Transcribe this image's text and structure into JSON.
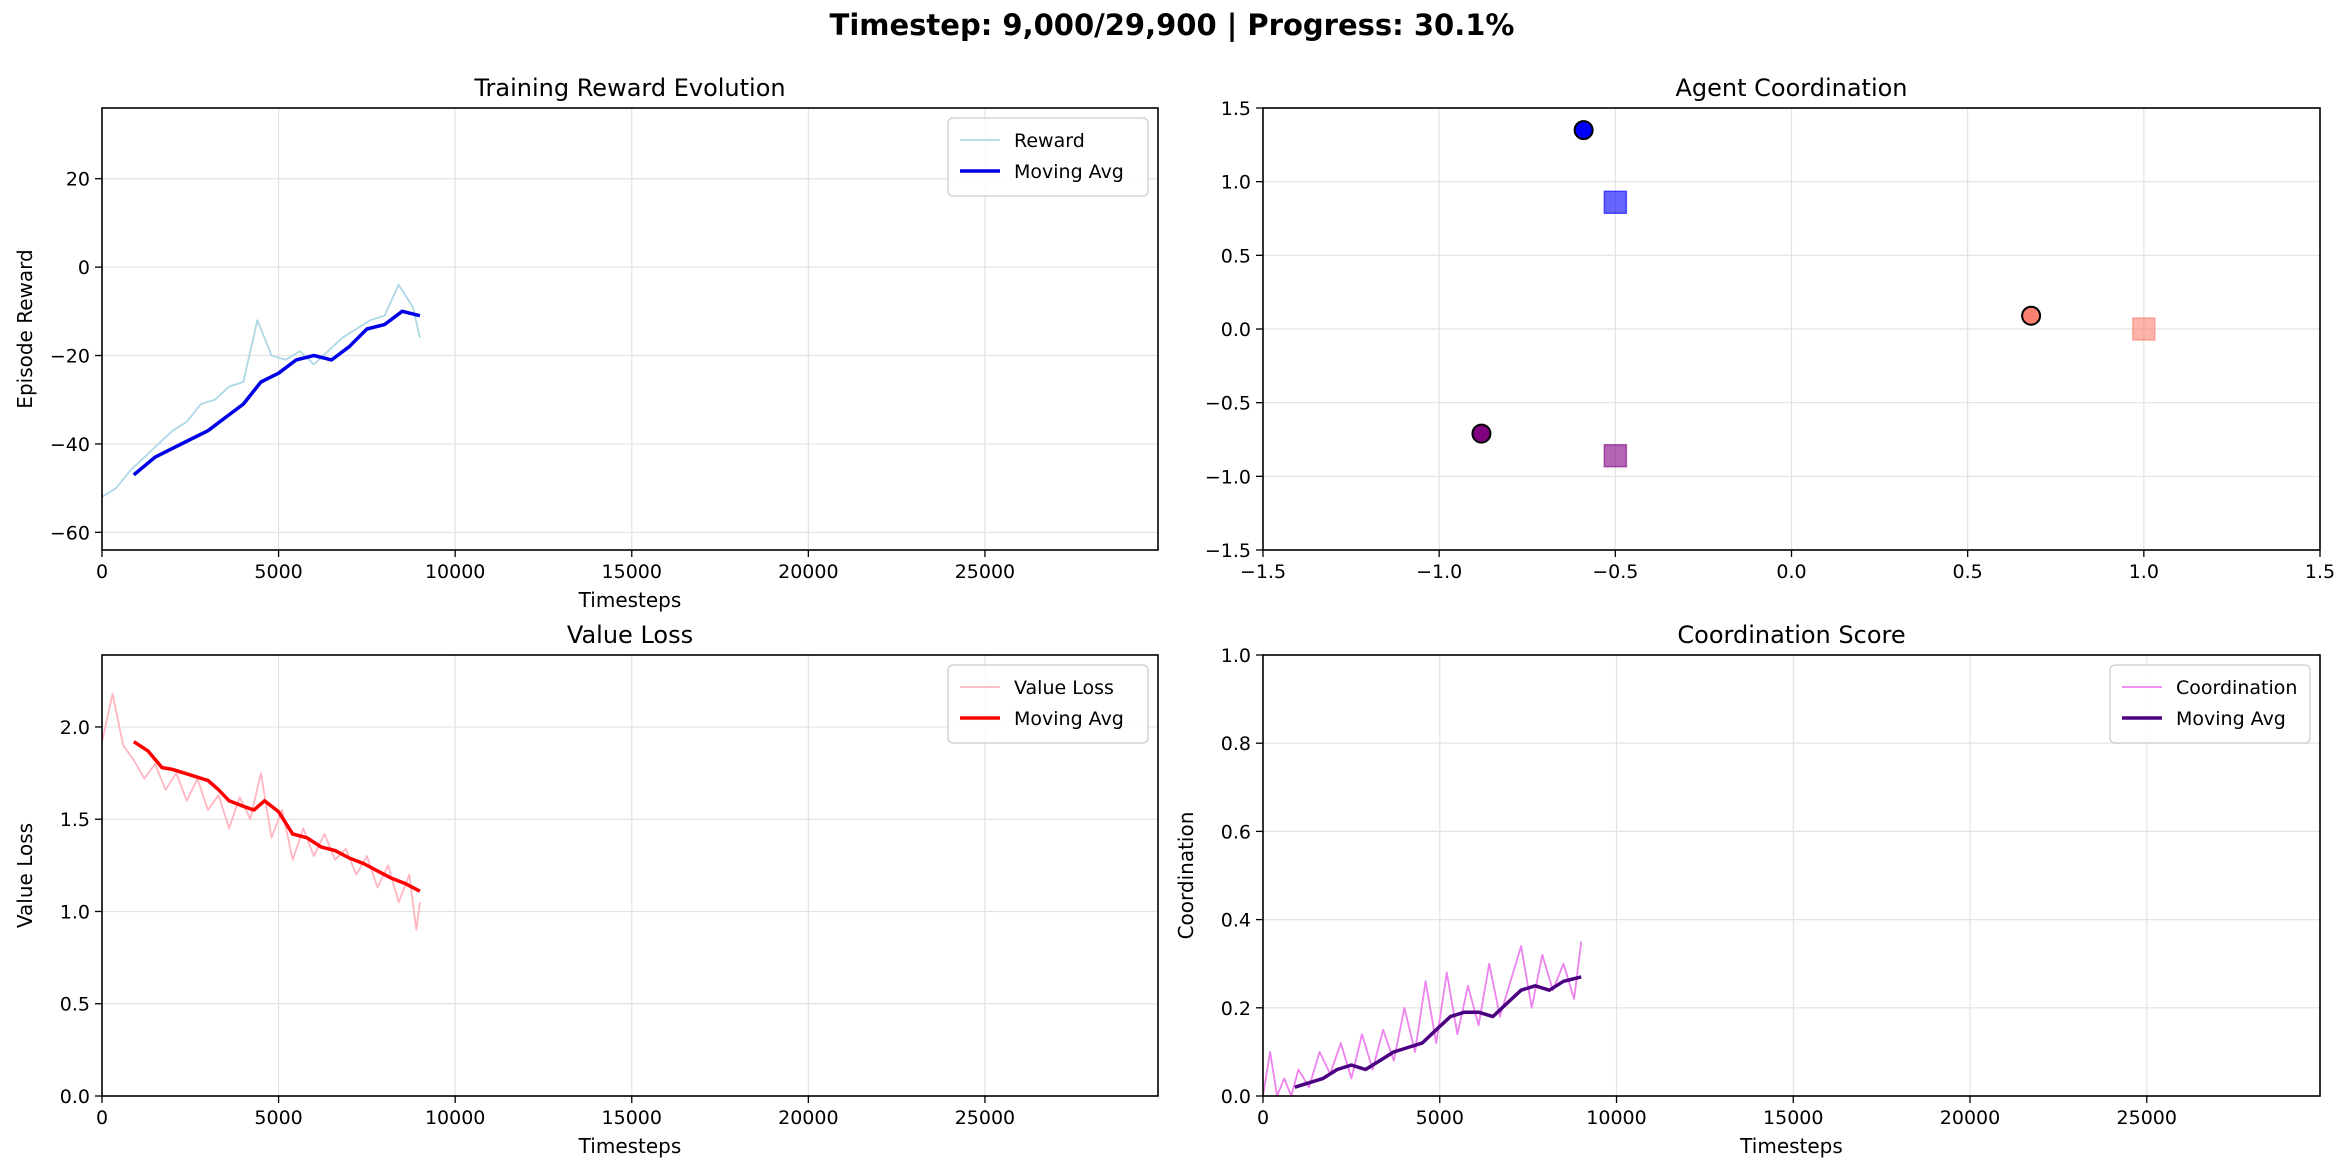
{
  "suptitle": "Timestep: 9,000/29,900 | Progress: 30.1%",
  "chart_data": [
    {
      "type": "line",
      "title": "Training Reward Evolution",
      "xlabel": "Timesteps",
      "ylabel": "Episode Reward",
      "xlim": [
        0,
        29900
      ],
      "ylim": [
        -64,
        36
      ],
      "xticks": [
        0,
        5000,
        10000,
        15000,
        20000,
        25000
      ],
      "yticks": [
        -60,
        -40,
        -20,
        0,
        20
      ],
      "grid": true,
      "legend": "top-right",
      "series": [
        {
          "name": "Reward",
          "color": "#add8e6",
          "width": 1.8,
          "x": [
            0,
            400,
            800,
            1200,
            1600,
            2000,
            2400,
            2800,
            3200,
            3600,
            4000,
            4400,
            4800,
            5200,
            5600,
            6000,
            6400,
            6800,
            7200,
            7600,
            8000,
            8400,
            8800,
            9000
          ],
          "y": [
            -52,
            -50,
            -46,
            -43,
            -40,
            -37,
            -35,
            -31,
            -30,
            -27,
            -26,
            -12,
            -20,
            -21,
            -19,
            -22,
            -19,
            -16,
            -14,
            -12,
            -11,
            -4,
            -9,
            -16
          ]
        },
        {
          "name": "Moving Avg",
          "color": "#0000e6",
          "width": 3.5,
          "x": [
            900,
            1500,
            2000,
            2500,
            3000,
            3500,
            4000,
            4500,
            5000,
            5500,
            6000,
            6500,
            7000,
            7500,
            8000,
            8500,
            9000
          ],
          "y": [
            -47,
            -43,
            -41,
            -39,
            -37,
            -34,
            -31,
            -26,
            -24,
            -21,
            -20,
            -21,
            -18,
            -14,
            -13,
            -10,
            -11
          ]
        }
      ]
    },
    {
      "type": "scatter",
      "title": "Agent Coordination",
      "xlabel": "",
      "ylabel": "",
      "xlim": [
        -1.5,
        1.5
      ],
      "ylim": [
        -1.5,
        1.5
      ],
      "xticks": [
        -1.5,
        -1.0,
        -0.5,
        0.0,
        0.5,
        1.0,
        1.5
      ],
      "yticks": [
        -1.5,
        -1.0,
        -0.5,
        0.0,
        0.5,
        1.0,
        1.5
      ],
      "xtick_labels": [
        "−1.5",
        "−1.0",
        "−0.5",
        "0.0",
        "0.5",
        "1.0",
        "1.5"
      ],
      "ytick_labels": [
        "−1.5",
        "−1.0",
        "−0.5",
        "0.0",
        "0.5",
        "1.0",
        "1.5"
      ],
      "grid": true,
      "agents": [
        {
          "x": -0.59,
          "y": 1.35,
          "color": "#0000ff"
        },
        {
          "x": 0.68,
          "y": 0.09,
          "color": "#fa8072"
        },
        {
          "x": -0.88,
          "y": -0.71,
          "color": "#800080"
        }
      ],
      "targets": [
        {
          "x": -0.5,
          "y": 0.86,
          "color": "#0000ff"
        },
        {
          "x": 1.0,
          "y": 0.0,
          "color": "#fa8072"
        },
        {
          "x": -0.5,
          "y": -0.86,
          "color": "#800080"
        }
      ]
    },
    {
      "type": "line",
      "title": "Value Loss",
      "xlabel": "Timesteps",
      "ylabel": "Value Loss",
      "xlim": [
        0,
        29900
      ],
      "ylim": [
        0,
        2.39
      ],
      "xticks": [
        0,
        5000,
        10000,
        15000,
        20000,
        25000
      ],
      "yticks": [
        0.0,
        0.5,
        1.0,
        1.5,
        2.0
      ],
      "ytick_labels": [
        "0.0",
        "0.5",
        "1.0",
        "1.5",
        "2.0"
      ],
      "grid": true,
      "legend": "top-right",
      "series": [
        {
          "name": "Value Loss",
          "color": "#ffb6c1",
          "width": 1.8,
          "x": [
            0,
            300,
            600,
            900,
            1200,
            1500,
            1800,
            2100,
            2400,
            2700,
            3000,
            3300,
            3600,
            3900,
            4200,
            4500,
            4800,
            5100,
            5400,
            5700,
            6000,
            6300,
            6600,
            6900,
            7200,
            7500,
            7800,
            8100,
            8400,
            8700,
            8900,
            9000
          ],
          "y": [
            1.92,
            2.18,
            1.9,
            1.82,
            1.72,
            1.8,
            1.66,
            1.75,
            1.6,
            1.72,
            1.55,
            1.63,
            1.45,
            1.62,
            1.5,
            1.75,
            1.4,
            1.55,
            1.28,
            1.45,
            1.3,
            1.42,
            1.28,
            1.34,
            1.2,
            1.3,
            1.13,
            1.25,
            1.05,
            1.2,
            0.9,
            1.05
          ]
        },
        {
          "name": "Moving Avg",
          "color": "#ff0000",
          "width": 3.5,
          "x": [
            900,
            1300,
            1700,
            2000,
            2500,
            3000,
            3300,
            3600,
            4000,
            4300,
            4600,
            5000,
            5400,
            5800,
            6200,
            6600,
            7000,
            7400,
            7800,
            8200,
            8600,
            9000
          ],
          "y": [
            1.92,
            1.87,
            1.78,
            1.77,
            1.74,
            1.71,
            1.66,
            1.6,
            1.57,
            1.55,
            1.6,
            1.54,
            1.42,
            1.4,
            1.35,
            1.33,
            1.29,
            1.26,
            1.22,
            1.18,
            1.15,
            1.11
          ]
        }
      ]
    },
    {
      "type": "line",
      "title": "Coordination Score",
      "xlabel": "Timesteps",
      "ylabel": "Coordination",
      "xlim": [
        0,
        29900
      ],
      "ylim": [
        0,
        1.0
      ],
      "xticks": [
        0,
        5000,
        10000,
        15000,
        20000,
        25000
      ],
      "yticks": [
        0.0,
        0.2,
        0.4,
        0.6,
        0.8,
        1.0
      ],
      "ytick_labels": [
        "0.0",
        "0.2",
        "0.4",
        "0.6",
        "0.8",
        "1.0"
      ],
      "grid": true,
      "legend": "top-right",
      "series": [
        {
          "name": "Coordination",
          "color": "#ee82ee",
          "width": 1.8,
          "x": [
            0,
            200,
            400,
            600,
            800,
            1000,
            1300,
            1600,
            1900,
            2200,
            2500,
            2800,
            3100,
            3400,
            3700,
            4000,
            4300,
            4600,
            4900,
            5200,
            5500,
            5800,
            6100,
            6400,
            6700,
            7000,
            7300,
            7600,
            7900,
            8200,
            8500,
            8800,
            9000
          ],
          "y": [
            0.0,
            0.1,
            0.0,
            0.04,
            0.0,
            0.06,
            0.02,
            0.1,
            0.05,
            0.12,
            0.04,
            0.14,
            0.06,
            0.15,
            0.08,
            0.2,
            0.1,
            0.26,
            0.12,
            0.28,
            0.14,
            0.25,
            0.16,
            0.3,
            0.18,
            0.26,
            0.34,
            0.2,
            0.32,
            0.24,
            0.3,
            0.22,
            0.35
          ]
        },
        {
          "name": "Moving Avg",
          "color": "#4b0082",
          "width": 3.5,
          "x": [
            900,
            1300,
            1700,
            2100,
            2500,
            2900,
            3300,
            3700,
            4100,
            4500,
            4900,
            5300,
            5700,
            6100,
            6500,
            6900,
            7300,
            7700,
            8100,
            8500,
            9000
          ],
          "y": [
            0.02,
            0.03,
            0.04,
            0.06,
            0.07,
            0.06,
            0.08,
            0.1,
            0.11,
            0.12,
            0.15,
            0.18,
            0.19,
            0.19,
            0.18,
            0.21,
            0.24,
            0.25,
            0.24,
            0.26,
            0.27
          ]
        }
      ]
    }
  ]
}
